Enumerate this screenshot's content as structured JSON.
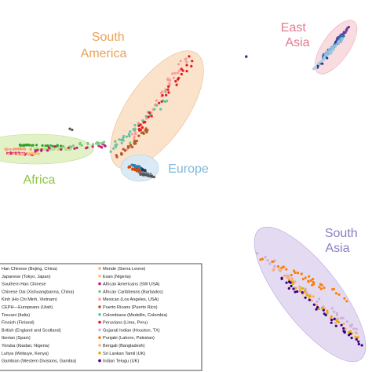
{
  "chart_data": {
    "type": "scatter",
    "title": "",
    "xlabel": "",
    "ylabel": "",
    "grid": false,
    "legend_position": "bottom-left",
    "region_labels": [
      {
        "id": "south-america",
        "lines": [
          "South",
          "America"
        ],
        "color": "#e8a35a"
      },
      {
        "id": "east-asia",
        "lines": [
          "East",
          "Asia"
        ],
        "color": "#e07c90"
      },
      {
        "id": "africa",
        "lines": [
          "Africa"
        ],
        "color": "#8cc63f"
      },
      {
        "id": "europe",
        "lines": [
          "Europe"
        ],
        "color": "#7fb8d8"
      },
      {
        "id": "south-asia",
        "lines": [
          "South",
          "Asia"
        ],
        "color": "#8e7cc3"
      }
    ],
    "series": [
      {
        "name": "Han Chinese (Bejing, China)",
        "color": "#1f3a93",
        "group": "east-asia"
      },
      {
        "name": "Japanese (Tokyo, Japan)",
        "color": "#6a3d9a",
        "group": "east-asia"
      },
      {
        "name": "Southern Han Chinese",
        "color": "#1f78b4",
        "group": "east-asia"
      },
      {
        "name": "Chinese Dai (Xishuangbanna, China)",
        "color": "#a6cee3",
        "group": "east-asia"
      },
      {
        "name": "Kinh (Ho Chi Minh, Vietnam)",
        "color": "#8fbcdb",
        "group": "east-asia"
      },
      {
        "name": "CEPH—Europeans (Utah)",
        "color": "#0b3d66",
        "group": "europe"
      },
      {
        "name": "Toscani (Italia)",
        "color": "#7a8a9a",
        "group": "europe"
      },
      {
        "name": "Finnish (Finland)",
        "color": "#555555",
        "group": "europe"
      },
      {
        "name": "British (England and Scotland)",
        "color": "#2c7fb8",
        "group": "europe"
      },
      {
        "name": "Iberian (Spain)",
        "color": "#d94801",
        "group": "europe"
      },
      {
        "name": "Yoruba (Ibadan, Nigeria)",
        "color": "#e7298a",
        "group": "africa"
      },
      {
        "name": "Luhya (Webuye, Kenya)",
        "color": "#b2df8a",
        "group": "africa"
      },
      {
        "name": "Gambian (Western Divisions, Gambia)",
        "color": "#33a02c",
        "group": "africa"
      },
      {
        "name": "Mende (Sierra Leone)",
        "color": "#f4a582",
        "group": "africa"
      },
      {
        "name": "Esan (Nigeria)",
        "color": "#fdbf6f",
        "group": "africa"
      },
      {
        "name": "African Americans (SW USA)",
        "color": "#c51b7d",
        "group": "admixed"
      },
      {
        "name": "African Caribbeans (Barbados)",
        "color": "#7fc97f",
        "group": "admixed"
      },
      {
        "name": "Mexican (Los Angeles, USA)",
        "color": "#fb9a99",
        "group": "south-america"
      },
      {
        "name": "Puerto Ricans (Puerto Rico)",
        "color": "#b15928",
        "group": "south-america"
      },
      {
        "name": "Colombians (Medellin, Colombia)",
        "color": "#66c2a5",
        "group": "south-america"
      },
      {
        "name": "Peruvians (Lima, Peru)",
        "color": "#e31a1c",
        "group": "south-america"
      },
      {
        "name": "Gujarati Indian (Houston, TX)",
        "color": "#cab2d6",
        "group": "south-asia"
      },
      {
        "name": "Punjabi (Lahore, Pakistan)",
        "color": "#ff7f00",
        "group": "south-asia"
      },
      {
        "name": "Bengali (Bangladesh)",
        "color": "#fdae6b",
        "group": "south-asia"
      },
      {
        "name": "Sri Lankan Tamil (UK)",
        "color": "#e6ab02",
        "group": "south-asia"
      },
      {
        "name": "Indian Telugu (UK)",
        "color": "#3f007d",
        "group": "south-asia"
      }
    ]
  }
}
